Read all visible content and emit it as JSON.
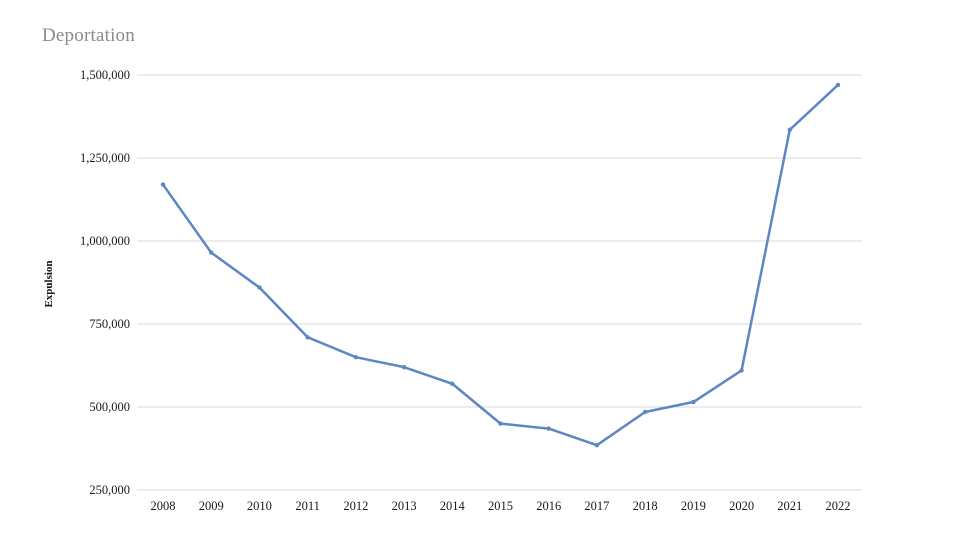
{
  "chart_data": {
    "type": "line",
    "title": "Deportation",
    "xlabel": "",
    "ylabel": "Expulsion",
    "categories": [
      "2008",
      "2009",
      "2010",
      "2011",
      "2012",
      "2013",
      "2014",
      "2015",
      "2016",
      "2017",
      "2018",
      "2019",
      "2020",
      "2021",
      "2022"
    ],
    "series": [
      {
        "name": "Expulsion",
        "values": [
          1170000,
          965000,
          860000,
          710000,
          650000,
          620000,
          570000,
          450000,
          435000,
          385000,
          485000,
          515000,
          610000,
          1335000,
          1470000
        ]
      }
    ],
    "ylim": [
      250000,
      1500000
    ],
    "ytick_values": [
      250000,
      500000,
      750000,
      1000000,
      1250000,
      1500000
    ],
    "ytick_labels": [
      "250,000",
      "500,000",
      "750,000",
      "1,000,000",
      "1,250,000",
      "1,500,000"
    ],
    "line_color": "#5b87c5",
    "grid_color": "#d8d8d8",
    "grid": "horizontal-only",
    "legend": "none",
    "title_color": "#8b8b8b"
  }
}
